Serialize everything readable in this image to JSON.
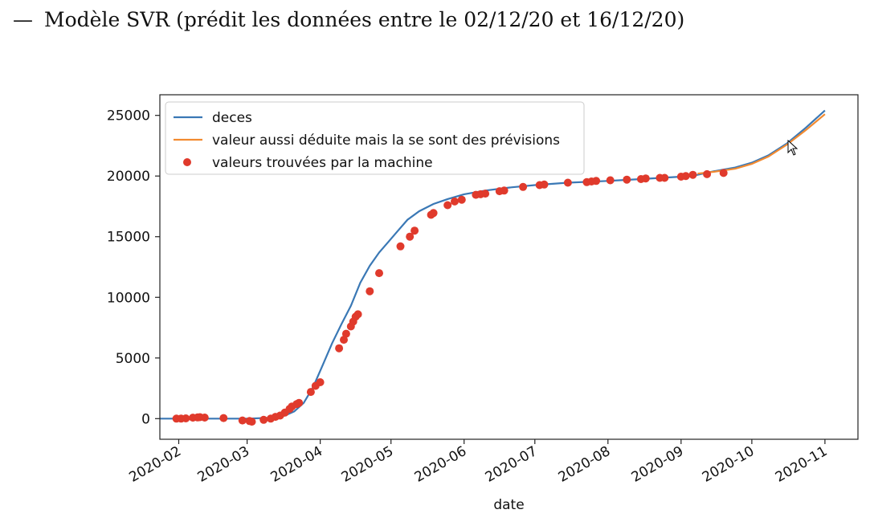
{
  "document": {
    "bullet": "—",
    "text": "Modèle SVR (prédit les données entre le 02/12/20 et 16/12/20)"
  },
  "chart_data": {
    "type": "line",
    "xlabel": "date",
    "ylabel": "",
    "x_tick_labels": [
      "2020-02",
      "2020-03",
      "2020-04",
      "2020-05",
      "2020-06",
      "2020-07",
      "2020-08",
      "2020-09",
      "2020-10",
      "2020-11"
    ],
    "x_tick_dates": [
      "2020-02-01",
      "2020-03-01",
      "2020-04-01",
      "2020-05-01",
      "2020-06-01",
      "2020-07-01",
      "2020-08-01",
      "2020-09-01",
      "2020-10-01",
      "2020-11-01"
    ],
    "y_ticks": [
      0,
      5000,
      10000,
      15000,
      20000,
      25000
    ],
    "y_tick_labels": [
      "0",
      "5000",
      "10000",
      "15000",
      "20000",
      "25000"
    ],
    "xlim": [
      "2020-01-24",
      "2020-11-15"
    ],
    "ylim": [
      -1700,
      26700
    ],
    "legend_position": "top-left",
    "grid": false,
    "colors": {
      "deces": "#3a78b5",
      "previsions": "#f28a30",
      "machine": "#e03a2c",
      "axes": "#222222"
    },
    "series": [
      {
        "name": "deces",
        "kind": "line",
        "points": [
          [
            "2020-01-24",
            0
          ],
          [
            "2020-02-15",
            0
          ],
          [
            "2020-03-01",
            0
          ],
          [
            "2020-03-10",
            60
          ],
          [
            "2020-03-17",
            250
          ],
          [
            "2020-03-21",
            600
          ],
          [
            "2020-03-25",
            1300
          ],
          [
            "2020-03-29",
            2600
          ],
          [
            "2020-04-02",
            4400
          ],
          [
            "2020-04-06",
            6200
          ],
          [
            "2020-04-10",
            7800
          ],
          [
            "2020-04-14",
            9300
          ],
          [
            "2020-04-18",
            11200
          ],
          [
            "2020-04-22",
            12600
          ],
          [
            "2020-04-26",
            13700
          ],
          [
            "2020-04-30",
            14600
          ],
          [
            "2020-05-04",
            15500
          ],
          [
            "2020-05-08",
            16400
          ],
          [
            "2020-05-13",
            17100
          ],
          [
            "2020-05-19",
            17700
          ],
          [
            "2020-05-25",
            18100
          ],
          [
            "2020-06-01",
            18500
          ],
          [
            "2020-06-10",
            18800
          ],
          [
            "2020-06-20",
            19050
          ],
          [
            "2020-07-01",
            19250
          ],
          [
            "2020-07-15",
            19450
          ],
          [
            "2020-08-01",
            19600
          ],
          [
            "2020-08-15",
            19750
          ],
          [
            "2020-09-01",
            19950
          ],
          [
            "2020-09-08",
            20100
          ],
          [
            "2020-09-15",
            20400
          ],
          [
            "2020-09-24",
            20700
          ],
          [
            "2020-10-01",
            21100
          ],
          [
            "2020-10-08",
            21700
          ],
          [
            "2020-10-16",
            22700
          ],
          [
            "2020-10-24",
            24000
          ],
          [
            "2020-11-01",
            25400
          ]
        ]
      },
      {
        "name": "valeur aussi déduite mais la se sont des prévisions",
        "kind": "line",
        "points": [
          [
            "2020-09-08",
            20200
          ],
          [
            "2020-09-15",
            20350
          ],
          [
            "2020-09-24",
            20600
          ],
          [
            "2020-10-01",
            21000
          ],
          [
            "2020-10-08",
            21600
          ],
          [
            "2020-10-16",
            22600
          ],
          [
            "2020-10-24",
            23800
          ],
          [
            "2020-11-01",
            25100
          ]
        ]
      },
      {
        "name": "valeurs trouvées par la machine",
        "kind": "scatter",
        "points": [
          [
            "2020-01-31",
            0
          ],
          [
            "2020-02-02",
            0
          ],
          [
            "2020-02-04",
            20
          ],
          [
            "2020-02-07",
            80
          ],
          [
            "2020-02-09",
            100
          ],
          [
            "2020-02-10",
            120
          ],
          [
            "2020-02-12",
            90
          ],
          [
            "2020-02-20",
            50
          ],
          [
            "2020-02-28",
            -150
          ],
          [
            "2020-03-02",
            -200
          ],
          [
            "2020-03-03",
            -250
          ],
          [
            "2020-03-08",
            -100
          ],
          [
            "2020-03-11",
            0
          ],
          [
            "2020-03-13",
            150
          ],
          [
            "2020-03-15",
            250
          ],
          [
            "2020-03-17",
            500
          ],
          [
            "2020-03-19",
            800
          ],
          [
            "2020-03-20",
            1000
          ],
          [
            "2020-03-22",
            1200
          ],
          [
            "2020-03-23",
            1300
          ],
          [
            "2020-03-28",
            2200
          ],
          [
            "2020-03-30",
            2700
          ],
          [
            "2020-04-01",
            3000
          ],
          [
            "2020-04-09",
            5800
          ],
          [
            "2020-04-11",
            6500
          ],
          [
            "2020-04-12",
            7000
          ],
          [
            "2020-04-14",
            7600
          ],
          [
            "2020-04-15",
            8000
          ],
          [
            "2020-04-16",
            8400
          ],
          [
            "2020-04-17",
            8600
          ],
          [
            "2020-04-22",
            10500
          ],
          [
            "2020-04-26",
            12000
          ],
          [
            "2020-05-05",
            14200
          ],
          [
            "2020-05-09",
            15000
          ],
          [
            "2020-05-11",
            15500
          ],
          [
            "2020-05-18",
            16800
          ],
          [
            "2020-05-19",
            16950
          ],
          [
            "2020-05-25",
            17600
          ],
          [
            "2020-05-28",
            17900
          ],
          [
            "2020-05-31",
            18050
          ],
          [
            "2020-06-06",
            18450
          ],
          [
            "2020-06-08",
            18500
          ],
          [
            "2020-06-10",
            18550
          ],
          [
            "2020-06-16",
            18750
          ],
          [
            "2020-06-18",
            18800
          ],
          [
            "2020-06-26",
            19100
          ],
          [
            "2020-07-03",
            19250
          ],
          [
            "2020-07-05",
            19300
          ],
          [
            "2020-07-15",
            19450
          ],
          [
            "2020-07-23",
            19500
          ],
          [
            "2020-07-25",
            19550
          ],
          [
            "2020-07-27",
            19600
          ],
          [
            "2020-08-02",
            19650
          ],
          [
            "2020-08-09",
            19700
          ],
          [
            "2020-08-15",
            19750
          ],
          [
            "2020-08-17",
            19800
          ],
          [
            "2020-08-23",
            19850
          ],
          [
            "2020-08-25",
            19850
          ],
          [
            "2020-09-01",
            19950
          ],
          [
            "2020-09-03",
            20000
          ],
          [
            "2020-09-06",
            20100
          ],
          [
            "2020-09-12",
            20150
          ],
          [
            "2020-09-19",
            20250
          ]
        ]
      }
    ]
  }
}
